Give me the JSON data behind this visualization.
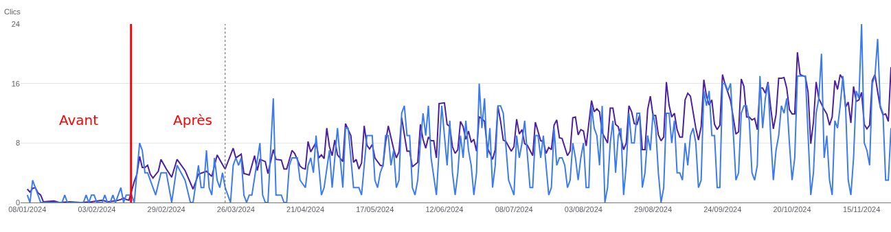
{
  "chart_data": {
    "type": "line",
    "ylabel": "Clics",
    "annotations": [
      "Avant",
      "Après"
    ],
    "xlim": [
      "2024-01-05T12:00",
      "2024-11-26"
    ],
    "xticks": [
      {
        "value": "2024-01-08",
        "label": "08/01/2024"
      },
      {
        "value": "2024-02-03",
        "label": "03/02/2024"
      },
      {
        "value": "2024-02-29",
        "label": "29/02/2024"
      },
      {
        "value": "2024-03-26",
        "label": "26/03/2024"
      },
      {
        "value": "2024-04-21",
        "label": "21/04/2024"
      },
      {
        "value": "2024-05-17",
        "label": "17/05/2024"
      },
      {
        "value": "2024-06-12",
        "label": "12/06/2024"
      },
      {
        "value": "2024-07-08",
        "label": "08/07/2024"
      },
      {
        "value": "2024-08-03",
        "label": "03/08/2024"
      },
      {
        "value": "2024-08-29",
        "label": "29/08/2024"
      },
      {
        "value": "2024-09-24",
        "label": "24/09/2024"
      },
      {
        "value": "2024-10-20",
        "label": "20/10/2024"
      },
      {
        "value": "2024-11-15",
        "label": "15/11/2024"
      }
    ],
    "ylim": [
      0,
      24
    ],
    "yticks": [
      0,
      8,
      16,
      24
    ],
    "grid": "y",
    "line_style": "solid",
    "ref_lines": [
      {
        "axis": "x",
        "value": "2024-02-15T19:00",
        "color": "#ff0000",
        "line_style": "solid"
      },
      {
        "axis": "x",
        "value": "2024-03-22",
        "color": "#5f5f5f",
        "line_style": "dotted"
      }
    ],
    "series": [
      {
        "color": "#4b1fa0",
        "x": [
          "2024-01-08",
          "2024-01-09",
          "2024-01-10",
          "2024-01-11",
          "2024-01-12",
          "2024-01-13",
          "2024-01-14",
          "2024-01-18",
          "2024-01-20",
          "2024-01-24",
          "2024-01-28",
          "2024-02-01",
          "2024-02-05",
          "2024-02-07",
          "2024-02-10",
          "2024-02-12",
          "2024-02-13",
          "2024-02-14",
          "2024-02-15",
          "2024-02-17",
          "2024-02-18",
          "2024-02-19",
          "2024-02-20",
          "2024-02-21",
          "2024-02-22",
          "2024-02-23",
          "2024-02-24",
          "2024-02-26",
          "2024-02-27",
          "2024-02-29",
          "2024-03-02",
          "2024-03-04",
          "2024-03-07",
          "2024-03-10",
          "2024-03-12",
          "2024-03-15",
          "2024-03-17",
          "2024-03-19",
          "2024-03-21",
          "2024-03-22",
          "2024-03-25",
          "2024-03-26",
          "2024-03-28",
          "2024-03-29",
          "2024-03-31",
          "2024-04-02",
          "2024-04-03",
          "2024-04-04",
          "2024-04-06",
          "2024-04-07",
          "2024-04-09",
          "2024-04-10",
          "2024-04-12",
          "2024-04-13",
          "2024-04-14",
          "2024-04-16",
          "2024-04-17",
          "2024-04-19",
          "2024-04-20",
          "2024-04-21",
          "2024-04-22",
          "2024-04-23",
          "2024-04-25",
          "2024-04-26",
          "2024-04-27",
          "2024-04-28",
          "2024-04-29",
          "2024-04-30",
          "2024-05-01",
          "2024-05-02",
          "2024-05-03",
          "2024-05-05",
          "2024-05-06",
          "2024-05-08",
          "2024-05-09",
          "2024-05-10",
          "2024-05-11",
          "2024-05-12",
          "2024-05-13",
          "2024-05-14",
          "2024-05-15",
          "2024-05-16",
          "2024-05-17",
          "2024-05-19",
          "2024-05-20",
          "2024-05-21",
          "2024-05-22",
          "2024-05-24",
          "2024-05-25",
          "2024-05-26",
          "2024-05-27",
          "2024-05-29",
          "2024-05-30",
          "2024-05-31",
          "2024-06-02",
          "2024-06-03",
          "2024-06-04",
          "2024-06-05",
          "2024-06-06",
          "2024-06-07",
          "2024-06-08",
          "2024-06-09",
          "2024-06-10",
          "2024-06-12",
          "2024-06-13",
          "2024-06-14",
          "2024-06-15",
          "2024-06-16",
          "2024-06-17",
          "2024-06-18",
          "2024-06-19",
          "2024-06-20",
          "2024-06-21",
          "2024-06-22",
          "2024-06-23",
          "2024-06-24",
          "2024-06-25",
          "2024-06-26",
          "2024-06-27",
          "2024-06-28",
          "2024-06-30",
          "2024-07-01",
          "2024-07-02",
          "2024-07-03",
          "2024-07-04",
          "2024-07-05",
          "2024-07-07",
          "2024-07-08",
          "2024-07-09",
          "2024-07-10",
          "2024-07-11",
          "2024-07-12",
          "2024-07-13",
          "2024-07-15",
          "2024-07-16",
          "2024-07-18",
          "2024-07-19",
          "2024-07-20",
          "2024-07-21",
          "2024-07-22",
          "2024-07-23",
          "2024-07-24",
          "2024-07-25",
          "2024-07-26",
          "2024-07-28",
          "2024-07-29",
          "2024-07-30",
          "2024-07-31",
          "2024-08-01",
          "2024-08-02",
          "2024-08-03",
          "2024-08-04",
          "2024-08-06",
          "2024-08-07",
          "2024-08-08",
          "2024-08-09",
          "2024-08-10",
          "2024-08-12",
          "2024-08-13",
          "2024-08-14",
          "2024-08-15",
          "2024-08-16",
          "2024-08-18",
          "2024-08-19",
          "2024-08-20",
          "2024-08-21",
          "2024-08-22",
          "2024-08-23",
          "2024-08-24",
          "2024-08-25",
          "2024-08-26",
          "2024-08-27",
          "2024-08-28",
          "2024-08-29",
          "2024-08-30",
          "2024-08-31",
          "2024-09-01",
          "2024-09-02",
          "2024-09-03",
          "2024-09-04",
          "2024-09-05",
          "2024-09-06",
          "2024-09-07",
          "2024-09-08",
          "2024-09-09",
          "2024-09-10",
          "2024-09-11",
          "2024-09-12",
          "2024-09-14",
          "2024-09-15",
          "2024-09-16",
          "2024-09-17",
          "2024-09-18",
          "2024-09-19",
          "2024-09-20",
          "2024-09-21",
          "2024-09-22",
          "2024-09-23",
          "2024-09-24",
          "2024-09-25",
          "2024-09-26",
          "2024-09-27",
          "2024-09-29",
          "2024-09-30",
          "2024-10-01",
          "2024-10-02",
          "2024-10-03",
          "2024-10-04",
          "2024-10-05",
          "2024-10-06",
          "2024-10-07",
          "2024-10-08",
          "2024-10-09",
          "2024-10-10",
          "2024-10-11",
          "2024-10-12",
          "2024-10-13",
          "2024-10-14",
          "2024-10-15",
          "2024-10-16",
          "2024-10-17",
          "2024-10-18",
          "2024-10-19",
          "2024-10-20",
          "2024-10-21",
          "2024-10-22",
          "2024-10-23",
          "2024-10-25",
          "2024-10-26",
          "2024-10-27",
          "2024-10-28",
          "2024-10-29",
          "2024-10-30",
          "2024-11-01",
          "2024-11-02",
          "2024-11-03",
          "2024-11-04",
          "2024-11-05",
          "2024-11-06",
          "2024-11-07",
          "2024-11-08",
          "2024-11-09",
          "2024-11-10",
          "2024-11-11",
          "2024-11-12",
          "2024-11-13",
          "2024-11-14",
          "2024-11-15",
          "2024-11-16",
          "2024-11-17",
          "2024-11-18",
          "2024-11-19",
          "2024-11-20",
          "2024-11-21",
          "2024-11-22",
          "2024-11-23",
          "2024-11-24",
          "2024-11-25",
          "2024-11-26"
        ],
        "values": [
          1.8,
          1.4,
          1.9,
          2.0,
          1.3,
          1.0,
          0.1,
          0.2,
          0,
          0.1,
          0,
          0.1,
          0.3,
          0.1,
          0.2,
          0.4,
          0.6,
          0.4,
          0.3,
          2.8,
          3.8,
          6.2,
          4.7,
          4.7,
          5.0,
          3.8,
          3.3,
          4.2,
          5.8,
          4.5,
          3.4,
          5.8,
          4.3,
          1.8,
          3.8,
          4.2,
          3.5,
          6.4,
          5.1,
          4.5,
          7.3,
          6.0,
          6.5,
          3.9,
          3.7,
          6.3,
          4.3,
          5.8,
          5.5,
          3.9,
          7.1,
          5.8,
          5.7,
          4.5,
          4.5,
          7.0,
          6.6,
          4.9,
          4.6,
          4.5,
          8.2,
          6.8,
          8.1,
          6.0,
          6.4,
          5.9,
          10.0,
          7.5,
          6.3,
          8.4,
          6.4,
          5.5,
          10.6,
          9.0,
          5.4,
          5.8,
          4.5,
          5.3,
          10.3,
          7.7,
          7.2,
          7.8,
          6.0,
          5.0,
          4.9,
          8.1,
          10.3,
          7.2,
          6.0,
          6.8,
          11.4,
          6.9,
          6.9,
          4.8,
          5.4,
          10.5,
          8.5,
          7.3,
          8.8,
          8.3,
          8.3,
          6.0,
          13.3,
          13.4,
          10.5,
          10.2,
          7.5,
          6.6,
          7.1,
          10.9,
          10.2,
          8.5,
          9.6,
          8.1,
          8.5,
          6.9,
          11.5,
          11.3,
          10.9,
          7.4,
          5.8,
          7.1,
          12.9,
          10.9,
          8.4,
          8.2,
          6.9,
          7.5,
          11.2,
          9.2,
          9.8,
          7.9,
          7.7,
          6.3,
          10.8,
          8.3,
          8.2,
          6.6,
          7.4,
          7.1,
          10.4,
          11.1,
          8.7,
          8.6,
          6.3,
          6.9,
          11.4,
          11.5,
          9.1,
          9.8,
          9.6,
          7.6,
          13.7,
          12.2,
          12.6,
          12.2,
          9.4,
          8.0,
          12.7,
          12.7,
          10.5,
          10.2,
          7.1,
          8.0,
          13.0,
          12.2,
          10.6,
          10.5,
          11.8,
          7.1,
          7.1,
          12.5,
          14.3,
          11.7,
          11.7,
          9.1,
          8.3,
          8.8,
          16.2,
          13.1,
          11.5,
          12.0,
          9.8,
          8.8,
          8.8,
          13.8,
          14.7,
          14.3,
          10.0,
          8.4,
          10.2,
          16.5,
          14.3,
          13.1,
          13.8,
          10.5,
          9.8,
          10.4,
          17.2,
          15.8,
          14.8,
          13.7,
          9.2,
          9.5,
          16.6,
          15.6,
          11.5,
          11.5,
          11.1,
          11.3,
          9.8,
          15.4,
          15.4,
          14.7,
          16.2,
          12.8,
          9.9,
          11.8,
          16.7,
          16.7,
          16.8,
          15.4,
          12.5,
          11.9,
          11.9,
          20.2,
          17.2,
          16.9,
          14.8,
          7.9,
          10.8,
          16.2,
          14.0,
          12.5,
          11.9,
          10.4,
          11.5,
          16.4,
          15.2,
          17.2,
          16.6,
          12.8,
          13.5,
          10.7,
          15.6,
          13.6,
          13.8,
          14.8,
          10.5,
          9.9,
          10.4,
          16.4,
          17.2,
          14.9,
          12.8,
          11.8,
          11.9,
          10.9,
          18.2
        ]
      },
      {
        "color": "#3b7bf0",
        "x": [
          "2024-01-08",
          "2024-01-09",
          "2024-01-10",
          "2024-01-12",
          "2024-01-13",
          "2024-01-21",
          "2024-01-22",
          "2024-01-23",
          "2024-01-29",
          "2024-01-30",
          "2024-01-31",
          "2024-02-01",
          "2024-02-02",
          "2024-02-03",
          "2024-02-05",
          "2024-02-06",
          "2024-02-07",
          "2024-02-08",
          "2024-02-09",
          "2024-02-10",
          "2024-02-12",
          "2024-02-13",
          "2024-02-14",
          "2024-02-16",
          "2024-02-17",
          "2024-02-19",
          "2024-02-20",
          "2024-02-21",
          "2024-02-22",
          "2024-02-25",
          "2024-02-27",
          "2024-02-29",
          "2024-03-02",
          "2024-03-04",
          "2024-03-07",
          "2024-03-09",
          "2024-03-10",
          "2024-03-12",
          "2024-03-13",
          "2024-03-14",
          "2024-03-15",
          "2024-03-16",
          "2024-03-17",
          "2024-03-18",
          "2024-03-19",
          "2024-03-20",
          "2024-03-21",
          "2024-03-22",
          "2024-03-24",
          "2024-03-25",
          "2024-03-26",
          "2024-03-27",
          "2024-03-28",
          "2024-03-29",
          "2024-03-30",
          "2024-03-31",
          "2024-04-01",
          "2024-04-04",
          "2024-04-05",
          "2024-04-06",
          "2024-04-07",
          "2024-04-09",
          "2024-04-10",
          "2024-04-12",
          "2024-04-13",
          "2024-04-14",
          "2024-04-15",
          "2024-04-16",
          "2024-04-18",
          "2024-04-19",
          "2024-04-21",
          "2024-04-22",
          "2024-04-23",
          "2024-04-24",
          "2024-04-25",
          "2024-04-27",
          "2024-04-28",
          "2024-04-30",
          "2024-05-01",
          "2024-05-03",
          "2024-05-05",
          "2024-05-06",
          "2024-05-07",
          "2024-05-09",
          "2024-05-11",
          "2024-05-12",
          "2024-05-14",
          "2024-05-16",
          "2024-05-17",
          "2024-05-18",
          "2024-05-19",
          "2024-05-20",
          "2024-05-21",
          "2024-05-22",
          "2024-05-23",
          "2024-05-24",
          "2024-05-25",
          "2024-05-26",
          "2024-05-27",
          "2024-05-28",
          "2024-05-29",
          "2024-05-30",
          "2024-05-31",
          "2024-06-01",
          "2024-06-02",
          "2024-06-03",
          "2024-06-04",
          "2024-06-05",
          "2024-06-06",
          "2024-06-07",
          "2024-06-09",
          "2024-06-11",
          "2024-06-13",
          "2024-06-14",
          "2024-06-15",
          "2024-06-16",
          "2024-06-17",
          "2024-06-18",
          "2024-06-19",
          "2024-06-20",
          "2024-06-21",
          "2024-06-22",
          "2024-06-23",
          "2024-06-24",
          "2024-06-25",
          "2024-06-26",
          "2024-06-27",
          "2024-06-28",
          "2024-06-29",
          "2024-06-30",
          "2024-07-01",
          "2024-07-02",
          "2024-07-03",
          "2024-07-04",
          "2024-07-06",
          "2024-07-08",
          "2024-07-09",
          "2024-07-10",
          "2024-07-11",
          "2024-07-12",
          "2024-07-14",
          "2024-07-15",
          "2024-07-16",
          "2024-07-17",
          "2024-07-18",
          "2024-07-19",
          "2024-07-20",
          "2024-07-21",
          "2024-07-22",
          "2024-07-23",
          "2024-07-24",
          "2024-07-25",
          "2024-07-26",
          "2024-07-27",
          "2024-07-28",
          "2024-07-29",
          "2024-07-30",
          "2024-07-31",
          "2024-08-01",
          "2024-08-02",
          "2024-08-03",
          "2024-08-04",
          "2024-08-05",
          "2024-08-06",
          "2024-08-07",
          "2024-08-08",
          "2024-08-09",
          "2024-08-10",
          "2024-08-11",
          "2024-08-12",
          "2024-08-13",
          "2024-08-14",
          "2024-08-15",
          "2024-08-16",
          "2024-08-17",
          "2024-08-18",
          "2024-08-19",
          "2024-08-20",
          "2024-08-21",
          "2024-08-22",
          "2024-08-23",
          "2024-08-24",
          "2024-08-25",
          "2024-08-26",
          "2024-08-27",
          "2024-08-28",
          "2024-08-29",
          "2024-08-30",
          "2024-08-31",
          "2024-09-01",
          "2024-09-02",
          "2024-09-03",
          "2024-09-04",
          "2024-09-05",
          "2024-09-06",
          "2024-09-07",
          "2024-09-08",
          "2024-09-09",
          "2024-09-10",
          "2024-09-11",
          "2024-09-12",
          "2024-09-13",
          "2024-09-14",
          "2024-09-15",
          "2024-09-16",
          "2024-09-17",
          "2024-09-18",
          "2024-09-19",
          "2024-09-20",
          "2024-09-21",
          "2024-09-22",
          "2024-09-23",
          "2024-09-24",
          "2024-09-25",
          "2024-09-26",
          "2024-09-27",
          "2024-09-29",
          "2024-09-30",
          "2024-10-01",
          "2024-10-02",
          "2024-10-03",
          "2024-10-04",
          "2024-10-05",
          "2024-10-06",
          "2024-10-07",
          "2024-10-08",
          "2024-10-09",
          "2024-10-10",
          "2024-10-11",
          "2024-10-12",
          "2024-10-13",
          "2024-10-14",
          "2024-10-15",
          "2024-10-16",
          "2024-10-17",
          "2024-10-18",
          "2024-10-19",
          "2024-10-20",
          "2024-10-21",
          "2024-10-22",
          "2024-10-23",
          "2024-10-24",
          "2024-10-25",
          "2024-10-26",
          "2024-10-27",
          "2024-10-28",
          "2024-10-29",
          "2024-10-30",
          "2024-10-31",
          "2024-11-01",
          "2024-11-02",
          "2024-11-03",
          "2024-11-04",
          "2024-11-05",
          "2024-11-06",
          "2024-11-07",
          "2024-11-08",
          "2024-11-09",
          "2024-11-10",
          "2024-11-11",
          "2024-11-12",
          "2024-11-13",
          "2024-11-14",
          "2024-11-15",
          "2024-11-16",
          "2024-11-17",
          "2024-11-18",
          "2024-11-19",
          "2024-11-20",
          "2024-11-21",
          "2024-11-22",
          "2024-11-23",
          "2024-11-24",
          "2024-11-25",
          "2024-11-26"
        ],
        "values": [
          1,
          0,
          3,
          1,
          0,
          0,
          1,
          0,
          0,
          1,
          0,
          1,
          1,
          0,
          0,
          1,
          0,
          0,
          1,
          0,
          2,
          0,
          1,
          1,
          0,
          8,
          7,
          4,
          4,
          1,
          4,
          4,
          0,
          5,
          3,
          0,
          0,
          5,
          2,
          2,
          7,
          2,
          1,
          6,
          3,
          2,
          4,
          2,
          0,
          5,
          6,
          5,
          6,
          1,
          0,
          1,
          1,
          8,
          1,
          0,
          0,
          14,
          1,
          1,
          0,
          0,
          5,
          6,
          6,
          3,
          2,
          5,
          6,
          4,
          9,
          1,
          2,
          7,
          2,
          10,
          2,
          10,
          10,
          2,
          2,
          1,
          9,
          9,
          3,
          2,
          4,
          5,
          9,
          9,
          5,
          7,
          2,
          3,
          12,
          13,
          9,
          9,
          2,
          1,
          3,
          8,
          12,
          9,
          13,
          6,
          1,
          13,
          5,
          11,
          4,
          1,
          4,
          9,
          6,
          11,
          7,
          5,
          1,
          4,
          16,
          10,
          14,
          6,
          10,
          2,
          5,
          13,
          13,
          12,
          3,
          1,
          9,
          6,
          8,
          11,
          2,
          2,
          9,
          9,
          6,
          9,
          5,
          1,
          2,
          10,
          5,
          6,
          6,
          5,
          2,
          3,
          8,
          6,
          3,
          6,
          8,
          2,
          2,
          13,
          10,
          9,
          5,
          13,
          0,
          2,
          8,
          11,
          4,
          9,
          10,
          1,
          5,
          12,
          8,
          8,
          12,
          12,
          2,
          4,
          9,
          7,
          12,
          10,
          4,
          0,
          2,
          12,
          12,
          8,
          11,
          4,
          4,
          3,
          8,
          5,
          9,
          10,
          8,
          2,
          3,
          15,
          13,
          15,
          9,
          9,
          2,
          2,
          16,
          16,
          15,
          16,
          3,
          4,
          12,
          13,
          13,
          11,
          4,
          3,
          5,
          17,
          10,
          14,
          16,
          9,
          3,
          7,
          9,
          13,
          12,
          14,
          8,
          3,
          6,
          17,
          17,
          17,
          17,
          9,
          1,
          4,
          12,
          14,
          20,
          6,
          9,
          3,
          1,
          11,
          10,
          13,
          17,
          13,
          3,
          1,
          6,
          15,
          14,
          24,
          8,
          7,
          5,
          16,
          17,
          22,
          13,
          12,
          3,
          3,
          10
        ]
      }
    ]
  }
}
